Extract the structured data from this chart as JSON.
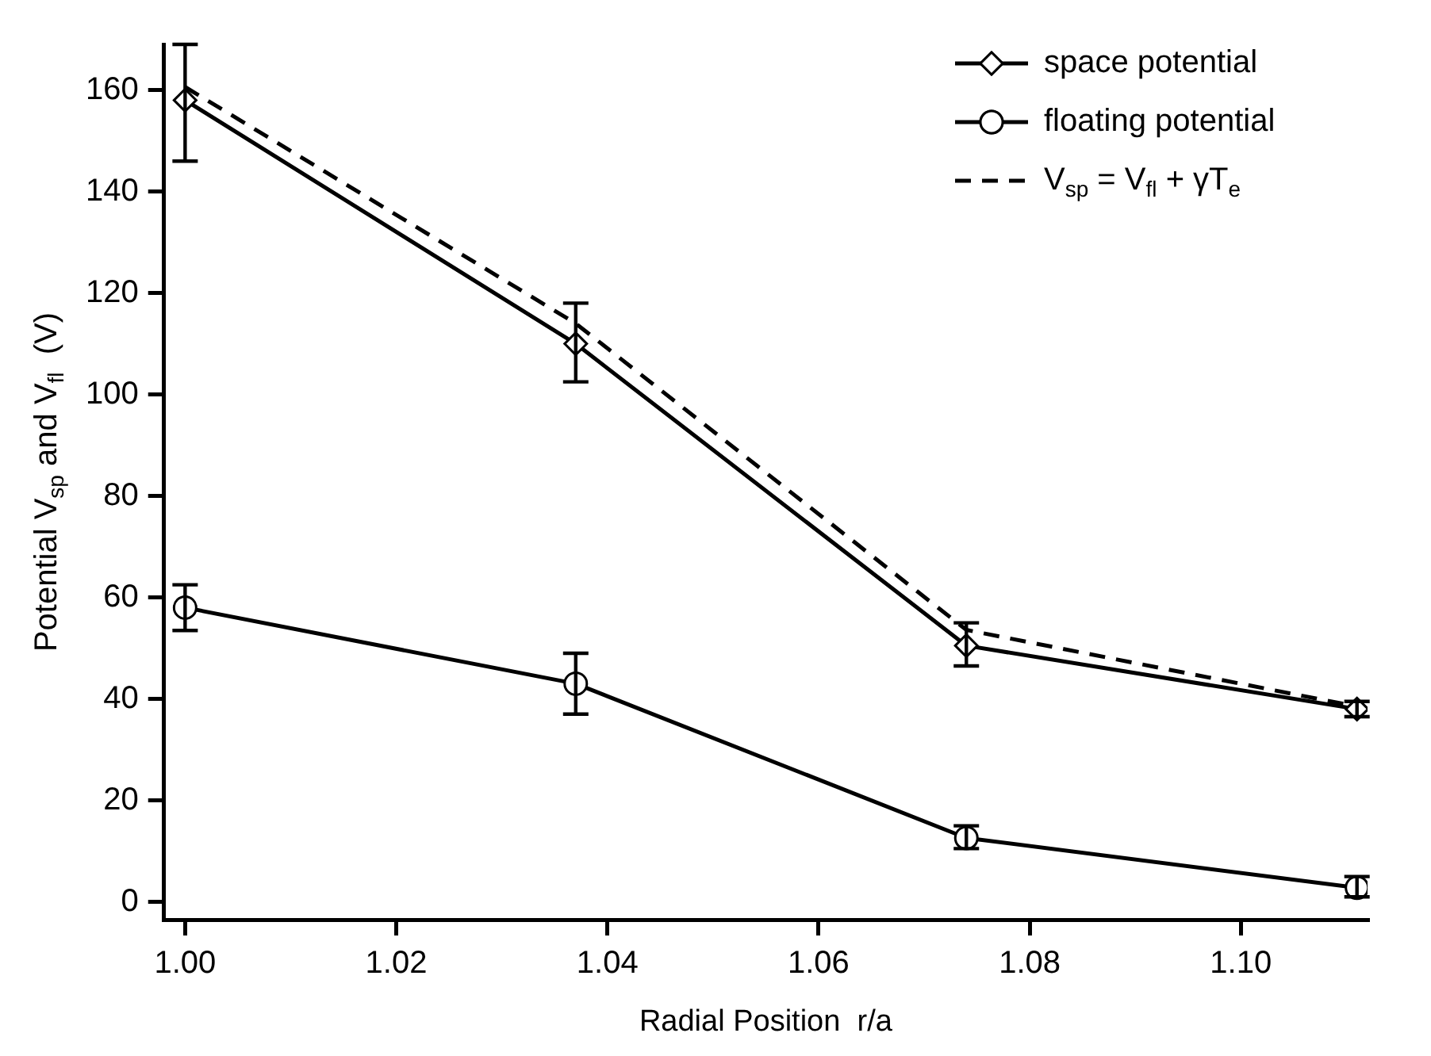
{
  "chart_data": {
    "type": "line",
    "xlabel": "Radial Position  r/a",
    "ylabel": "Potential V$_{sp}$ and V$_{fl}$  (V)",
    "x": [
      1.0,
      1.037,
      1.074,
      1.111
    ],
    "series": [
      {
        "name": "space potential",
        "color": "#000000",
        "marker": "diamond",
        "values": [
          158,
          110,
          50.5,
          38
        ],
        "errors": [
          [
            146,
            169
          ],
          [
            102.5,
            118
          ],
          [
            46.5,
            55
          ],
          [
            36.5,
            39.5
          ]
        ]
      },
      {
        "name": "floating potential",
        "color": "#000000",
        "marker": "circle",
        "values": [
          58,
          43,
          12.6,
          2.8
        ],
        "errors": [
          [
            53.5,
            62.5
          ],
          [
            37,
            49
          ],
          [
            10.5,
            15
          ],
          [
            1,
            5
          ]
        ]
      },
      {
        "name": "V$_{sp}$ = V$_{fl}$ + γT$_{e}$",
        "color": "#000000",
        "marker": "none",
        "line_style": "dashed",
        "values": [
          160.6,
          114,
          53.6,
          38.5
        ]
      }
    ],
    "xlim": [
      0.998,
      1.112
    ],
    "xticks": [
      {
        "value": 1.0,
        "label": "1.00"
      },
      {
        "value": 1.02,
        "label": "1.02"
      },
      {
        "value": 1.04,
        "label": "1.04"
      },
      {
        "value": 1.06,
        "label": "1.06"
      },
      {
        "value": 1.08,
        "label": "1.08"
      },
      {
        "value": 1.1,
        "label": "1.10"
      }
    ],
    "ylim": [
      -3.5,
      169
    ],
    "yticks": [
      0,
      20,
      40,
      60,
      80,
      100,
      120,
      140,
      160
    ],
    "grid": false,
    "legend": "top right"
  }
}
